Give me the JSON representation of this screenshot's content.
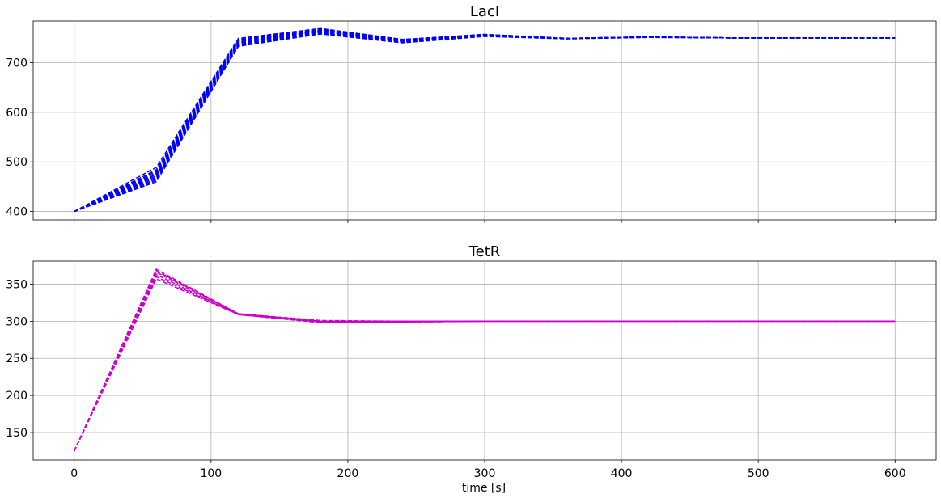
{
  "figure": {
    "xlabel": "time [s]"
  },
  "chart_data": [
    {
      "type": "line",
      "title": "LacI",
      "xlabel": "",
      "ylabel": "",
      "xlim": [
        -30,
        630
      ],
      "ylim": [
        383,
        784
      ],
      "xticks": [
        0,
        100,
        200,
        300,
        400,
        500,
        600
      ],
      "yticks": [
        400,
        500,
        600,
        700
      ],
      "show_xtick_labels": false,
      "grid": true,
      "line_color": "#0000ff",
      "line_style": "dashed",
      "x": [
        0,
        60,
        120,
        180,
        240,
        300,
        360,
        420,
        480,
        540,
        600
      ],
      "series": [
        {
          "values": [
            400,
            460,
            733,
            758,
            740,
            753,
            748,
            751,
            750,
            750,
            750
          ]
        },
        {
          "values": [
            400,
            463,
            735,
            760,
            741,
            754,
            749,
            751,
            750,
            750,
            750
          ]
        },
        {
          "values": [
            400,
            466,
            737,
            762,
            742,
            755,
            749,
            752,
            750,
            750,
            750
          ]
        },
        {
          "values": [
            400,
            469,
            739,
            763,
            743,
            755,
            749,
            752,
            750,
            750,
            750
          ]
        },
        {
          "values": [
            400,
            472,
            741,
            764,
            744,
            756,
            749,
            752,
            750,
            750,
            750
          ]
        },
        {
          "values": [
            400,
            475,
            742,
            765,
            744,
            756,
            749,
            752,
            750,
            750,
            750
          ]
        },
        {
          "values": [
            400,
            478,
            744,
            766,
            745,
            756,
            749,
            752,
            750,
            750,
            750
          ]
        },
        {
          "values": [
            400,
            481,
            745,
            767,
            746,
            757,
            749,
            752,
            750,
            750,
            750
          ]
        },
        {
          "values": [
            400,
            484,
            747,
            768,
            746,
            757,
            749,
            752,
            750,
            750,
            750
          ]
        },
        {
          "values": [
            400,
            489,
            749,
            769,
            747,
            757,
            749,
            752,
            750,
            750,
            750
          ]
        }
      ]
    },
    {
      "type": "line",
      "title": "TetR",
      "xlabel": "time [s]",
      "ylabel": "",
      "xlim": [
        -30,
        630
      ],
      "ylim": [
        113,
        381
      ],
      "xticks": [
        0,
        100,
        200,
        300,
        400,
        500,
        600
      ],
      "yticks": [
        150,
        200,
        250,
        300,
        350
      ],
      "show_xtick_labels": true,
      "grid": true,
      "line_color": "#cc00cc",
      "line_style": "dashed",
      "x": [
        0,
        60,
        120,
        180,
        240,
        300,
        360,
        420,
        480,
        540,
        600
      ],
      "series": [
        {
          "values": [
            125,
            357,
            309,
            298,
            299,
            300,
            300,
            300,
            300,
            300,
            300
          ]
        },
        {
          "values": [
            125,
            360,
            309,
            299,
            299,
            300,
            300,
            300,
            300,
            300,
            300
          ]
        },
        {
          "values": [
            125,
            363,
            309,
            299,
            299,
            300,
            300,
            300,
            300,
            300,
            300
          ]
        },
        {
          "values": [
            125,
            366,
            310,
            300,
            300,
            300,
            300,
            300,
            300,
            300,
            300
          ]
        },
        {
          "values": [
            125,
            368,
            310,
            300,
            300,
            300,
            300,
            300,
            300,
            300,
            300
          ]
        },
        {
          "values": [
            125,
            370,
            310,
            301,
            300,
            300,
            300,
            300,
            300,
            300,
            300
          ]
        }
      ]
    }
  ]
}
